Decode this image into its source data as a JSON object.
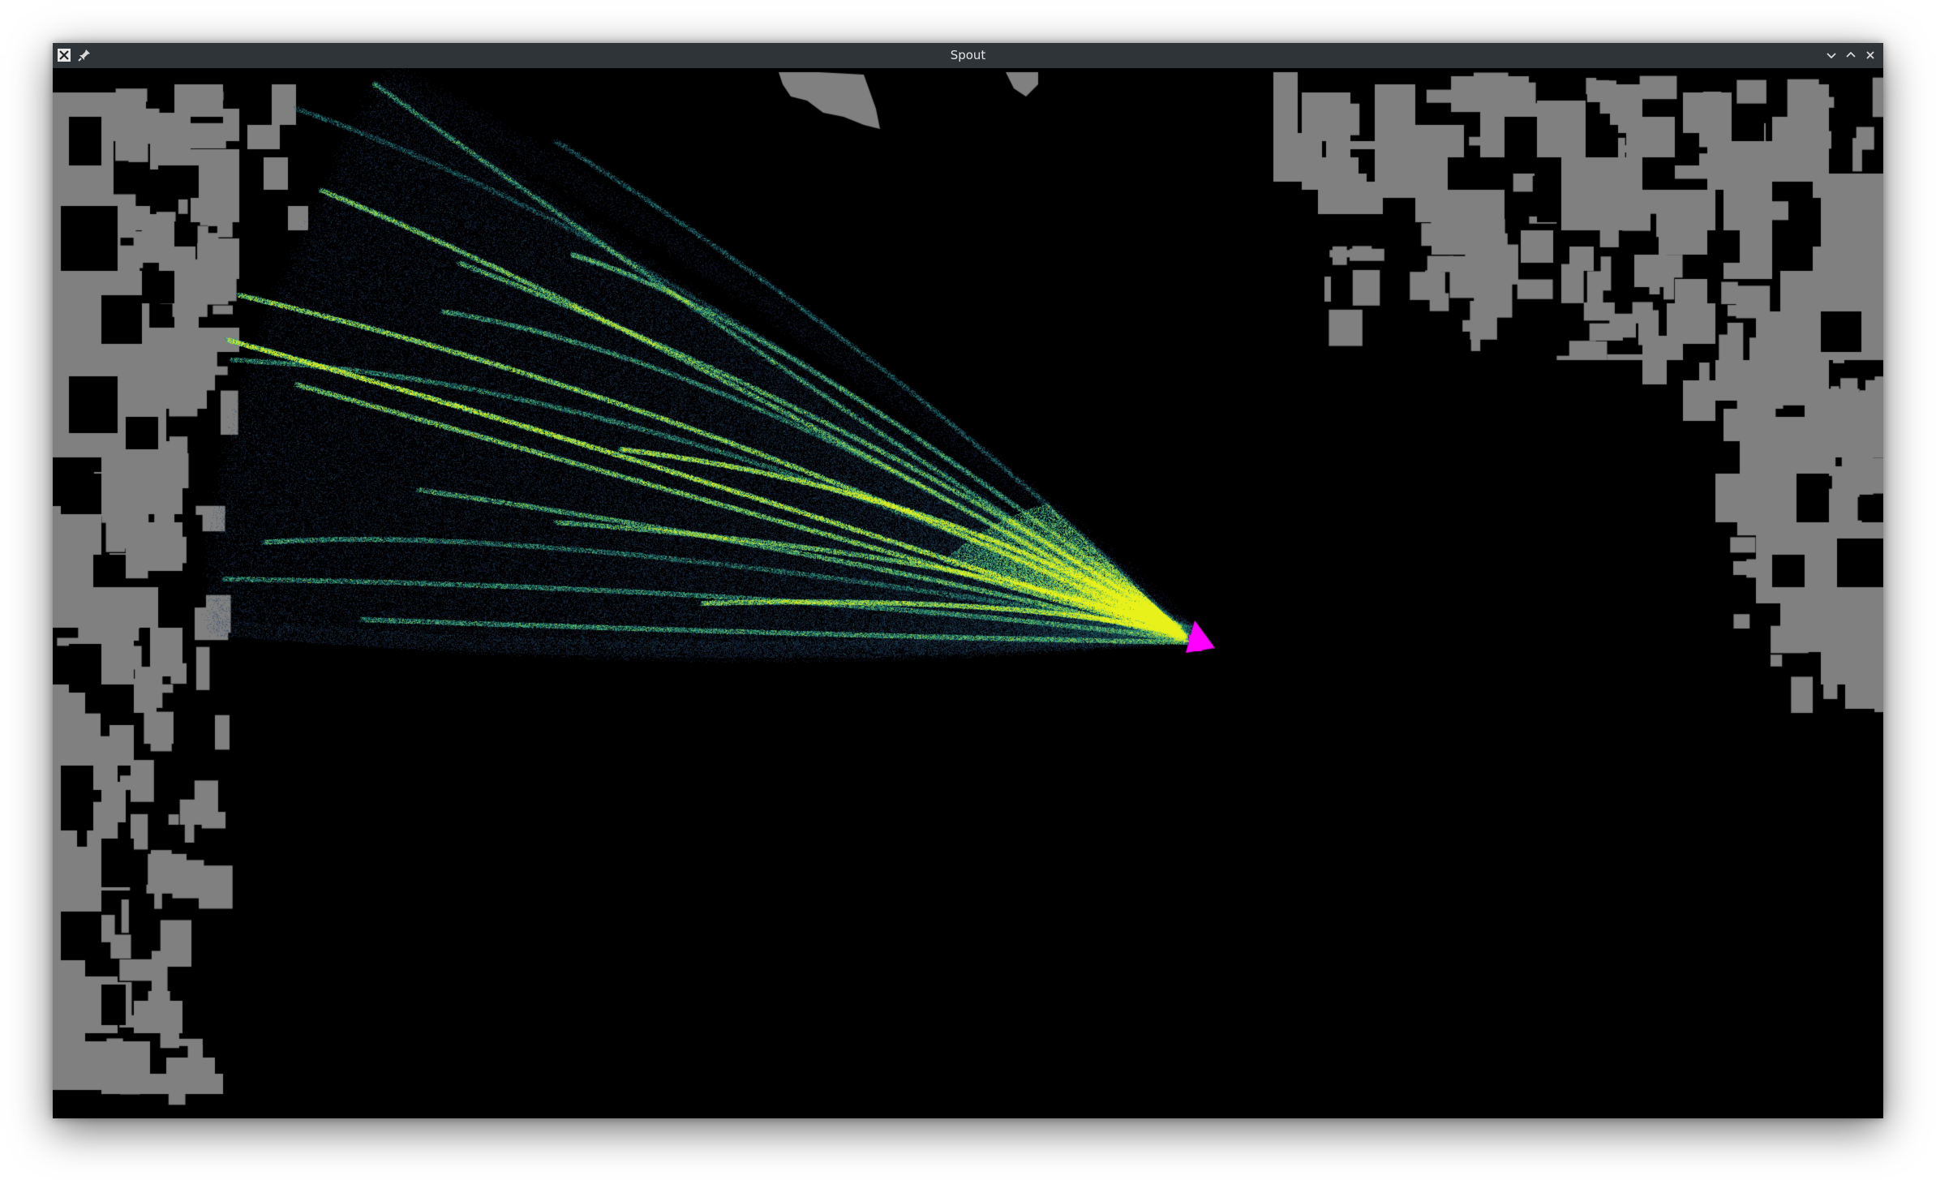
{
  "window": {
    "title": "Spout"
  },
  "icons": {
    "app": "x-app-icon",
    "pin": "pin-icon",
    "minimize": "chevron-down-icon",
    "maximize": "chevron-up-icon",
    "close": "close-icon"
  },
  "colors": {
    "titlebar": "#2f3438",
    "background": "#000000",
    "terrain": "#808080",
    "ship": "#ff00ff",
    "particle_low": "#2a1e5c",
    "particle_mid": "#1f9a8a",
    "particle_high": "#e8f21a"
  }
}
